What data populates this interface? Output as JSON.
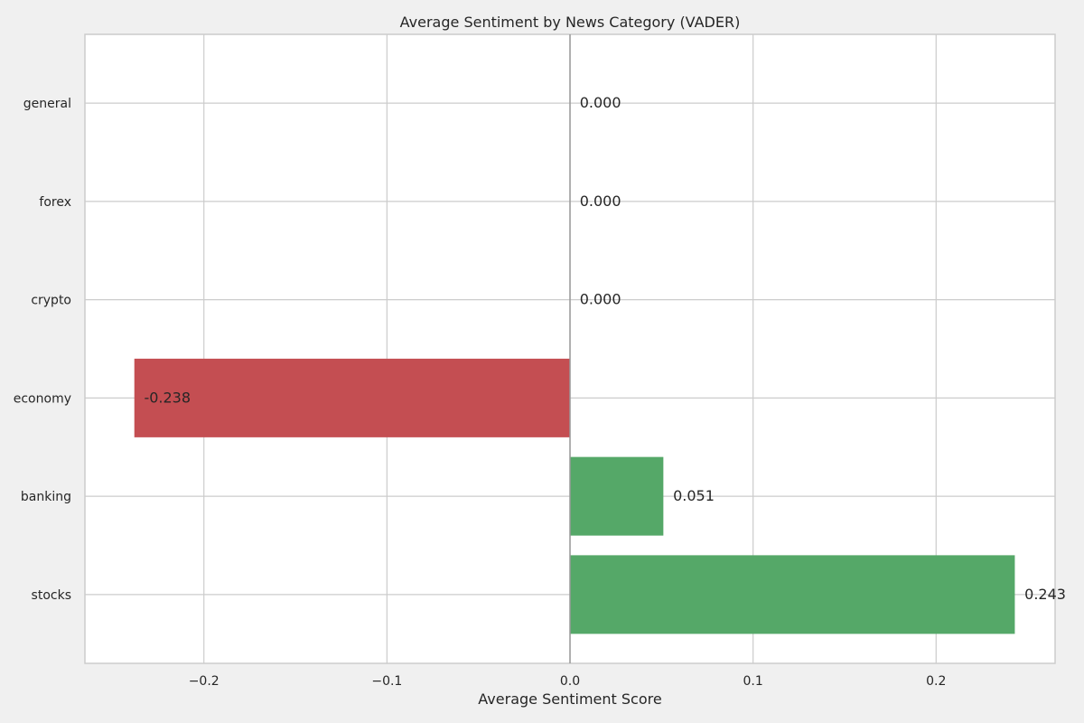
{
  "chart_data": {
    "type": "bar",
    "orientation": "horizontal",
    "title": "Average Sentiment by News Category (VADER)",
    "xlabel": "Average Sentiment Score",
    "ylabel": "",
    "xlim": [
      -0.265,
      0.265
    ],
    "x_ticks": [
      -0.2,
      -0.1,
      0.0,
      0.1,
      0.2
    ],
    "x_tick_labels": [
      "−0.2",
      "−0.1",
      "0.0",
      "0.1",
      "0.2"
    ],
    "categories": [
      "stocks",
      "banking",
      "economy",
      "crypto",
      "forex",
      "general"
    ],
    "values": [
      0.243,
      0.051,
      -0.238,
      0.0,
      0.0,
      0.0
    ],
    "value_labels": [
      "0.243",
      "0.051",
      "-0.238",
      "0.000",
      "0.000",
      "0.000"
    ],
    "grid": true,
    "colors": {
      "positive": "#55a868",
      "negative": "#c44e52",
      "zero_line": "#999999"
    }
  }
}
